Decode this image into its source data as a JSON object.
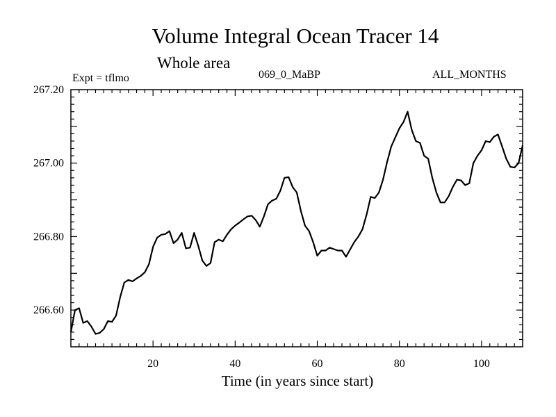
{
  "chart_data": {
    "type": "line",
    "title": "Volume Integral Ocean Tracer 14",
    "subtitle": "Whole area",
    "annotations": {
      "experiment": "Expt = tflmo",
      "run": "069_0_MaBP",
      "period": "ALL_MONTHS"
    },
    "xlabel": "Time (in years since start)",
    "ylabel": "",
    "xlim": [
      0,
      110
    ],
    "ylim": [
      266.5,
      267.2
    ],
    "x_ticks": [
      20,
      40,
      60,
      80,
      100
    ],
    "x_tick_labels": [
      "20",
      "40",
      "60",
      "80",
      "100"
    ],
    "y_ticks": [
      266.6,
      266.8,
      267.0,
      267.2
    ],
    "y_tick_labels": [
      "266.60",
      "266.80",
      "267.00",
      "267.20"
    ],
    "grid": false,
    "series": [
      {
        "name": "Volume Integral Ocean Tracer 14",
        "x": [
          0,
          1,
          2,
          3,
          4,
          5,
          6,
          7,
          8,
          9,
          10,
          11,
          12,
          13,
          14,
          15,
          16,
          17,
          18,
          19,
          20,
          21,
          22,
          23,
          24,
          25,
          26,
          27,
          28,
          29,
          30,
          31,
          32,
          33,
          34,
          35,
          36,
          37,
          38,
          39,
          40,
          41,
          42,
          43,
          44,
          45,
          46,
          47,
          48,
          49,
          50,
          51,
          52,
          53,
          54,
          55,
          56,
          57,
          58,
          59,
          60,
          61,
          62,
          63,
          64,
          65,
          66,
          67,
          68,
          69,
          70,
          71,
          72,
          73,
          74,
          75,
          76,
          77,
          78,
          79,
          80,
          81,
          82,
          83,
          84,
          85,
          86,
          87,
          88,
          89,
          90,
          91,
          92,
          93,
          94,
          95,
          96,
          97,
          98,
          99,
          100,
          101,
          102,
          103,
          104,
          105,
          106,
          107,
          108,
          109,
          110
        ],
        "values": [
          266.54,
          266.6,
          266.605,
          266.565,
          266.57,
          266.555,
          266.535,
          266.538,
          266.548,
          266.57,
          266.568,
          266.585,
          266.635,
          266.675,
          266.682,
          266.678,
          266.686,
          266.693,
          266.703,
          266.725,
          266.772,
          266.797,
          266.805,
          266.807,
          266.815,
          266.782,
          266.792,
          266.81,
          266.768,
          266.77,
          266.81,
          266.775,
          266.735,
          266.72,
          266.728,
          266.785,
          266.792,
          266.787,
          266.805,
          266.82,
          266.83,
          266.838,
          266.847,
          266.855,
          266.857,
          266.845,
          266.827,
          266.855,
          266.888,
          266.898,
          266.903,
          266.925,
          266.96,
          266.962,
          266.935,
          266.92,
          266.87,
          266.83,
          266.815,
          266.785,
          266.748,
          266.762,
          266.762,
          266.77,
          266.766,
          266.762,
          266.762,
          266.745,
          266.765,
          266.785,
          266.8,
          266.82,
          266.86,
          266.908,
          266.905,
          266.92,
          266.955,
          267.003,
          267.045,
          267.07,
          267.095,
          267.112,
          267.14,
          267.09,
          267.06,
          267.055,
          267.02,
          267.012,
          266.96,
          266.92,
          266.893,
          266.893,
          266.91,
          266.935,
          266.955,
          266.953,
          266.94,
          266.945,
          267.0,
          267.02,
          267.035,
          267.06,
          267.057,
          267.072,
          267.078,
          267.045,
          267.012,
          266.99,
          266.988,
          267.0,
          267.048
        ]
      }
    ]
  }
}
